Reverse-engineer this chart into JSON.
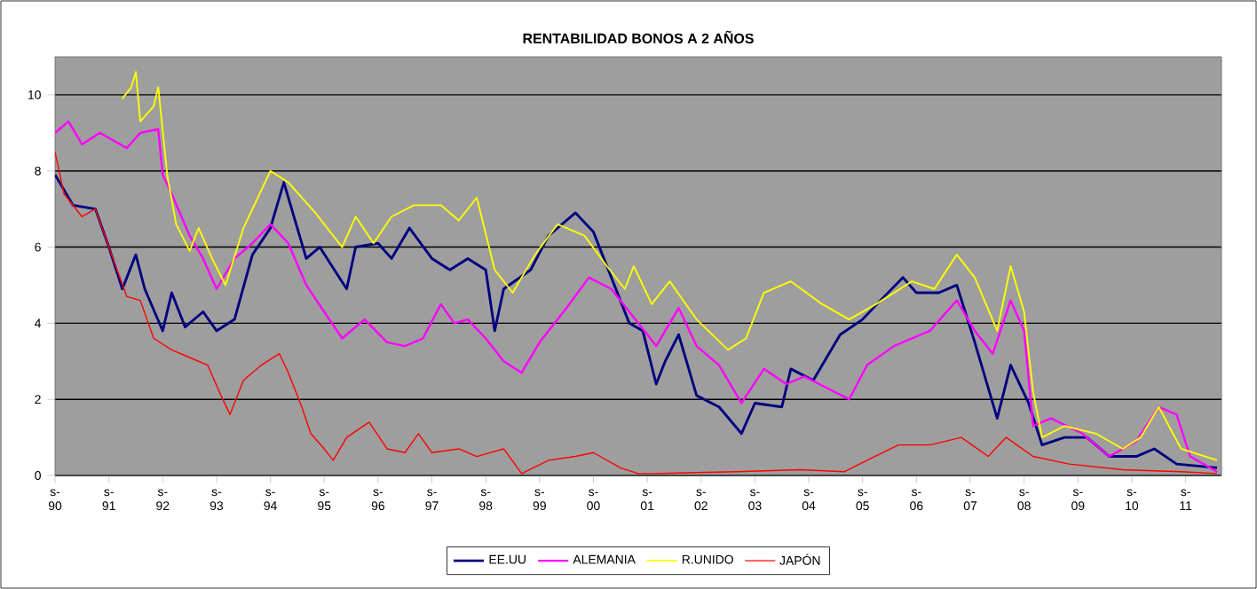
{
  "chart_data": {
    "type": "line",
    "title": "RENTABILIDAD BONOS A 2 AÑOS",
    "xlim": [
      "1990-09",
      "2012-05"
    ],
    "xticks": [
      {
        "value": "1990-09",
        "label": "s- 90"
      },
      {
        "value": "1991-09",
        "label": "s- 91"
      },
      {
        "value": "1992-09",
        "label": "s- 92"
      },
      {
        "value": "1993-09",
        "label": "s- 93"
      },
      {
        "value": "1994-09",
        "label": "s- 94"
      },
      {
        "value": "1995-09",
        "label": "s- 95"
      },
      {
        "value": "1996-09",
        "label": "s- 96"
      },
      {
        "value": "1997-09",
        "label": "s- 97"
      },
      {
        "value": "1998-09",
        "label": "s- 98"
      },
      {
        "value": "1999-09",
        "label": "s- 99"
      },
      {
        "value": "2000-09",
        "label": "s- 00"
      },
      {
        "value": "2001-09",
        "label": "s- 01"
      },
      {
        "value": "2002-09",
        "label": "s- 02"
      },
      {
        "value": "2003-09",
        "label": "s- 03"
      },
      {
        "value": "2004-09",
        "label": "s- 04"
      },
      {
        "value": "2005-09",
        "label": "s- 05"
      },
      {
        "value": "2006-09",
        "label": "s- 06"
      },
      {
        "value": "2007-09",
        "label": "s- 07"
      },
      {
        "value": "2008-09",
        "label": "s- 08"
      },
      {
        "value": "2009-09",
        "label": "s- 09"
      },
      {
        "value": "2010-09",
        "label": "s- 10"
      },
      {
        "value": "2011-09",
        "label": "s- 11"
      }
    ],
    "ylim": [
      0,
      11
    ],
    "yticks": [
      0,
      2,
      4,
      6,
      8,
      10
    ],
    "grid": "y",
    "legend": "bottom",
    "marker": "none",
    "line_style": "solid",
    "series": [
      {
        "name": "EE.UU",
        "color": "#000080",
        "x": [
          "1990-09",
          "1991-01",
          "1991-06",
          "1991-09",
          "1991-12",
          "1992-03",
          "1992-05",
          "1992-09",
          "1992-11",
          "1993-02",
          "1993-06",
          "1993-09",
          "1994-01",
          "1994-05",
          "1994-09",
          "1994-12",
          "1995-03",
          "1995-05",
          "1995-08",
          "1996-02",
          "1996-04",
          "1996-09",
          "1996-12",
          "1997-04",
          "1997-09",
          "1998-01",
          "1998-05",
          "1998-09",
          "1998-11",
          "1999-01",
          "1999-07",
          "1999-11",
          "2000-05",
          "2000-09",
          "2001-01",
          "2001-05",
          "2001-08",
          "2001-11",
          "2002-01",
          "2002-04",
          "2002-08",
          "2003-01",
          "2003-06",
          "2003-09",
          "2004-03",
          "2004-05",
          "2004-10",
          "2005-04",
          "2005-09",
          "2006-01",
          "2006-06",
          "2006-09",
          "2007-02",
          "2007-06",
          "2007-10",
          "2008-03",
          "2008-06",
          "2008-10",
          "2009-01",
          "2009-06",
          "2009-11",
          "2010-04",
          "2010-10",
          "2011-02",
          "2011-07",
          "2012-04"
        ],
        "values": [
          7.9,
          7.1,
          7.0,
          6.0,
          4.9,
          5.8,
          4.9,
          3.8,
          4.8,
          3.9,
          4.3,
          3.8,
          4.1,
          5.8,
          6.5,
          7.7,
          6.5,
          5.7,
          6.0,
          4.9,
          6.0,
          6.1,
          5.7,
          6.5,
          5.7,
          5.4,
          5.7,
          5.4,
          3.8,
          4.9,
          5.4,
          6.3,
          6.9,
          6.4,
          5.2,
          4.0,
          3.8,
          2.4,
          3.0,
          3.7,
          2.1,
          1.8,
          1.1,
          1.9,
          1.8,
          2.8,
          2.5,
          3.7,
          4.1,
          4.6,
          5.2,
          4.8,
          4.8,
          5.0,
          3.5,
          1.5,
          2.9,
          1.9,
          0.8,
          1.0,
          1.0,
          0.5,
          0.5,
          0.7,
          0.3,
          0.2
        ]
      },
      {
        "name": "ALEMANIA",
        "color": "#ff00ff",
        "x": [
          "1990-09",
          "1990-12",
          "1991-03",
          "1991-07",
          "1992-01",
          "1992-04",
          "1992-08",
          "1992-09",
          "1992-11",
          "1993-03",
          "1993-06",
          "1993-09",
          "1994-01",
          "1994-05",
          "1994-09",
          "1995-01",
          "1995-05",
          "1995-09",
          "1996-01",
          "1996-06",
          "1996-11",
          "1997-03",
          "1997-07",
          "1997-11",
          "1998-02",
          "1998-05",
          "1998-09",
          "1999-01",
          "1999-05",
          "1999-09",
          "2000-03",
          "2000-08",
          "2001-01",
          "2001-05",
          "2001-11",
          "2002-04",
          "2002-08",
          "2003-01",
          "2003-06",
          "2003-11",
          "2004-04",
          "2004-08",
          "2005-01",
          "2005-06",
          "2005-10",
          "2006-04",
          "2006-12",
          "2007-06",
          "2007-10",
          "2008-02",
          "2008-06",
          "2008-09",
          "2008-11",
          "2009-03",
          "2009-10",
          "2010-04",
          "2010-10",
          "2011-03",
          "2011-07",
          "2011-10",
          "2012-04"
        ],
        "values": [
          9.0,
          9.3,
          8.7,
          9.0,
          8.6,
          9.0,
          9.1,
          7.9,
          7.4,
          6.3,
          5.7,
          4.9,
          5.7,
          6.1,
          6.6,
          6.1,
          5.0,
          4.3,
          3.6,
          4.1,
          3.5,
          3.4,
          3.6,
          4.5,
          4.0,
          4.1,
          3.6,
          3.0,
          2.7,
          3.5,
          4.4,
          5.2,
          4.9,
          4.3,
          3.4,
          4.4,
          3.4,
          2.9,
          1.9,
          2.8,
          2.4,
          2.6,
          2.3,
          2.0,
          2.9,
          3.4,
          3.8,
          4.6,
          3.8,
          3.2,
          4.6,
          3.8,
          1.3,
          1.5,
          1.1,
          0.5,
          0.9,
          1.8,
          1.6,
          0.5,
          0.1
        ]
      },
      {
        "name": "R.UNIDO",
        "color": "#ffff00",
        "x": [
          "1991-12",
          "1992-02",
          "1992-03",
          "1992-04",
          "1992-07",
          "1992-08",
          "1992-10",
          "1992-12",
          "1993-03",
          "1993-05",
          "1993-08",
          "1993-11",
          "1994-03",
          "1994-07",
          "1994-09",
          "1995-01",
          "1995-07",
          "1996-01",
          "1996-04",
          "1996-08",
          "1996-12",
          "1997-05",
          "1997-11",
          "1998-03",
          "1998-07",
          "1998-11",
          "1999-03",
          "1999-08",
          "2000-01",
          "2000-07",
          "2000-12",
          "2001-04",
          "2001-06",
          "2001-10",
          "2002-02",
          "2002-08",
          "2003-03",
          "2003-07",
          "2003-11",
          "2004-05",
          "2004-12",
          "2005-06",
          "2005-12",
          "2006-08",
          "2007-01",
          "2007-06",
          "2007-10",
          "2008-03",
          "2008-06",
          "2008-09",
          "2008-11",
          "2009-01",
          "2009-06",
          "2010-01",
          "2010-07",
          "2010-11",
          "2011-03",
          "2011-08",
          "2012-04"
        ],
        "values": [
          9.9,
          10.2,
          10.6,
          9.3,
          9.7,
          10.2,
          7.9,
          6.6,
          5.9,
          6.5,
          5.7,
          5.0,
          6.5,
          7.5,
          8.0,
          7.7,
          6.9,
          6.0,
          6.8,
          6.1,
          6.8,
          7.1,
          7.1,
          6.7,
          7.3,
          5.4,
          4.8,
          5.8,
          6.6,
          6.3,
          5.5,
          4.9,
          5.5,
          4.5,
          5.1,
          4.1,
          3.3,
          3.6,
          4.8,
          5.1,
          4.5,
          4.1,
          4.5,
          5.1,
          4.9,
          5.8,
          5.2,
          3.8,
          5.5,
          4.3,
          2.2,
          1.0,
          1.3,
          1.1,
          0.7,
          1.0,
          1.8,
          0.7,
          0.4
        ]
      },
      {
        "name": "JAPÓN",
        "color": "#ff0000",
        "x": [
          "1990-09",
          "1990-11",
          "1991-03",
          "1991-06",
          "1991-09",
          "1992-01",
          "1992-04",
          "1992-07",
          "1992-11",
          "1993-03",
          "1993-07",
          "1993-10",
          "1993-12",
          "1994-03",
          "1994-07",
          "1994-11",
          "1995-01",
          "1995-04",
          "1995-06",
          "1995-09",
          "1995-11",
          "1996-02",
          "1996-07",
          "1996-11",
          "1997-03",
          "1997-06",
          "1997-09",
          "1998-03",
          "1998-07",
          "1999-01",
          "1999-05",
          "1999-11",
          "2000-05",
          "2000-09",
          "2001-03",
          "2001-07",
          "2001-10",
          "2003-05",
          "2004-07",
          "2005-05",
          "2005-10",
          "2006-05",
          "2006-12",
          "2007-07",
          "2008-01",
          "2008-05",
          "2008-11",
          "2009-07",
          "2010-07",
          "2011-08",
          "2012-04"
        ],
        "values": [
          8.5,
          7.4,
          6.8,
          7.0,
          6.0,
          4.7,
          4.6,
          3.6,
          3.3,
          3.1,
          2.9,
          2.1,
          1.6,
          2.5,
          2.9,
          3.2,
          2.7,
          1.8,
          1.1,
          0.7,
          0.4,
          1.0,
          1.4,
          0.7,
          0.6,
          1.1,
          0.6,
          0.7,
          0.5,
          0.7,
          0.05,
          0.4,
          0.5,
          0.6,
          0.2,
          0.05,
          0.05,
          0.1,
          0.15,
          0.1,
          0.4,
          0.8,
          0.8,
          1.0,
          0.5,
          1.0,
          0.5,
          0.3,
          0.15,
          0.1,
          0.05
        ]
      }
    ]
  }
}
